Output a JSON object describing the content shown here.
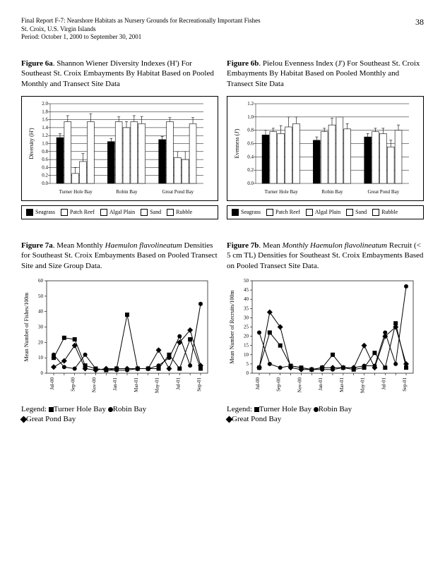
{
  "header": {
    "line1": "Final Report F-7: Nearshore Habitats as Nursery Grounds for Recreationally Important Fishes",
    "line2": "St. Croix, U.S. Virgin Islands",
    "line3": "Period: October 1, 2000 to September 30, 2001",
    "page_number": "38"
  },
  "fig6a": {
    "caption_label": "Figure 6a",
    "caption_text": ".  Shannon Wiener Diversity Indexes (H') For Southeast St. Croix Embayments By Habitat Based on Pooled Monthly and Transect Site Data",
    "type": "bar",
    "ylabel": "Diversity (H')",
    "ylim": [
      0,
      2.0
    ],
    "ytick_step": 0.2,
    "groups": [
      "Turner Hole Bay",
      "Robin Bay",
      "Great Pond Bay"
    ],
    "series_names": [
      "Seagrass",
      "Patch Reef",
      "Algal Plain",
      "Sand",
      "Rubble"
    ],
    "series_fill": [
      "#000000",
      "#ffffff",
      "#ffffff",
      "#ffffff",
      "#ffffff"
    ],
    "values": [
      [
        1.15,
        1.55,
        0.25,
        0.55,
        1.55
      ],
      [
        1.05,
        1.55,
        1.4,
        1.55,
        1.5
      ],
      [
        1.1,
        1.55,
        0.65,
        0.6,
        1.5
      ]
    ],
    "errors": [
      [
        0.1,
        0.15,
        0.15,
        0.2,
        0.2
      ],
      [
        0.08,
        0.12,
        0.15,
        0.15,
        0.18
      ],
      [
        0.08,
        0.1,
        0.15,
        0.2,
        0.15
      ]
    ],
    "axis_fontsize": 7,
    "background_color": "#ffffff",
    "grid_color": "#000000",
    "label_fontsize": 8
  },
  "fig6b": {
    "caption_label": "Figure 6b",
    "caption_text": ".  Pielou Evenness Index (J') For Southeast St. Croix Embayments By Habitat Based on Pooled Monthly and Transect Site Data",
    "type": "bar",
    "ylabel": "Evenness (J')",
    "ylim": [
      0,
      1.2
    ],
    "ytick_step": 0.2,
    "groups": [
      "Turner Hole Bay",
      "Robin Bay",
      "Great Pond Bay"
    ],
    "series_names": [
      "Seagrass",
      "Patch Reef",
      "Algal Plain",
      "Sand",
      "Rubble"
    ],
    "series_fill": [
      "#000000",
      "#ffffff",
      "#ffffff",
      "#ffffff",
      "#ffffff"
    ],
    "values": [
      [
        0.73,
        0.78,
        0.75,
        0.85,
        0.9
      ],
      [
        0.65,
        0.78,
        0.88,
        1.0,
        0.82
      ],
      [
        0.7,
        0.78,
        0.75,
        0.55,
        0.8
      ]
    ],
    "errors": [
      [
        0.07,
        0.05,
        0.12,
        0.15,
        0.1
      ],
      [
        0.05,
        0.05,
        0.1,
        0.0,
        0.08
      ],
      [
        0.05,
        0.05,
        0.08,
        0.1,
        0.08
      ]
    ],
    "axis_fontsize": 7,
    "background_color": "#ffffff",
    "grid_color": "#000000",
    "label_fontsize": 8
  },
  "legend6": {
    "items": [
      "Seagrass",
      "Patch Reef",
      "Algal Plain",
      "Sand",
      "Rubble"
    ],
    "filled": [
      true,
      false,
      false,
      false,
      false
    ]
  },
  "fig7a": {
    "caption_label": "Figure 7a",
    "caption_pre": ".   Mean Monthly ",
    "caption_italic": "Haemulon flavolineatum",
    "caption_post": " Densities for Southeast St. Croix Embayments Based on Pooled Transect Site and Size Group Data.",
    "type": "scatter-line",
    "ylabel": "Mean Number of Fishes/100m",
    "ylim": [
      0,
      60
    ],
    "ytick_step": 10,
    "x_labels": [
      "Jul-00",
      "",
      "Sep-00",
      "",
      "Nov-00",
      "",
      "Jan-01",
      "",
      "Mar-01",
      "",
      "May-01",
      "",
      "Jul-01",
      "",
      "Sep-01"
    ],
    "series": {
      "Turner Hole Bay": {
        "marker": "square",
        "color": "#000000",
        "y": [
          10,
          23,
          22,
          5,
          3,
          2,
          3,
          38,
          3,
          3,
          3,
          12,
          3,
          22,
          3
        ]
      },
      "Robin Bay": {
        "marker": "circle",
        "color": "#000000",
        "y": [
          12,
          4,
          3,
          12,
          3,
          2,
          2,
          2,
          3,
          3,
          5,
          10,
          24,
          5,
          45
        ]
      },
      "Great Pond Bay": {
        "marker": "diamond",
        "color": "#000000",
        "y": [
          4,
          8,
          18,
          3,
          2,
          3,
          3,
          3,
          3,
          3,
          15,
          3,
          20,
          28,
          5
        ]
      }
    },
    "axis_fontsize": 7,
    "label_fontsize": 8,
    "legend_text_pre": "Legend:   ",
    "legend_thb": "Turner Hole Bay   ",
    "legend_rb": "Robin Bay",
    "legend_gpb": "Great Pond Bay"
  },
  "fig7b": {
    "caption_label": "Figure 7b",
    "caption_pre": ".   Mean ",
    "caption_italic": "Monthly Haemulon flavolineatum",
    "caption_post": " Recruit (< 5 cm TL) Densities for Southeast St. Croix Embayments Based on Pooled Transect Site Data.",
    "type": "scatter-line",
    "ylabel": "Mean Number of Recruits/100m",
    "ylim": [
      0,
      50
    ],
    "yticks": [
      0,
      5,
      10,
      15,
      20,
      25,
      30,
      35,
      40,
      45,
      50
    ],
    "x_labels": [
      "Jul-00",
      "",
      "Sep-00",
      "",
      "Nov-00",
      "",
      "Jan-01",
      "",
      "Mar-01",
      "",
      "May-01",
      "",
      "Jul-01",
      "",
      "Sep-01"
    ],
    "series": {
      "Turner Hole Bay": {
        "marker": "square",
        "color": "#000000",
        "y": [
          3,
          22,
          15,
          4,
          3,
          2,
          3,
          10,
          3,
          2,
          3,
          11,
          3,
          27,
          3
        ]
      },
      "Robin Bay": {
        "marker": "circle",
        "color": "#000000",
        "y": [
          22,
          5,
          3,
          4,
          3,
          2,
          2,
          2,
          3,
          3,
          4,
          4,
          22,
          5,
          47
        ]
      },
      "Great Pond Bay": {
        "marker": "diamond",
        "color": "#000000",
        "y": [
          3,
          33,
          25,
          3,
          2,
          2,
          3,
          3,
          3,
          3,
          15,
          3,
          20,
          25,
          5
        ]
      }
    },
    "axis_fontsize": 7,
    "label_fontsize": 8,
    "legend_text_pre": "Legend:   ",
    "legend_thb": "Turner Hole Bay   ",
    "legend_rb": "Robin Bay",
    "legend_gpb": "Great Pond Bay"
  }
}
